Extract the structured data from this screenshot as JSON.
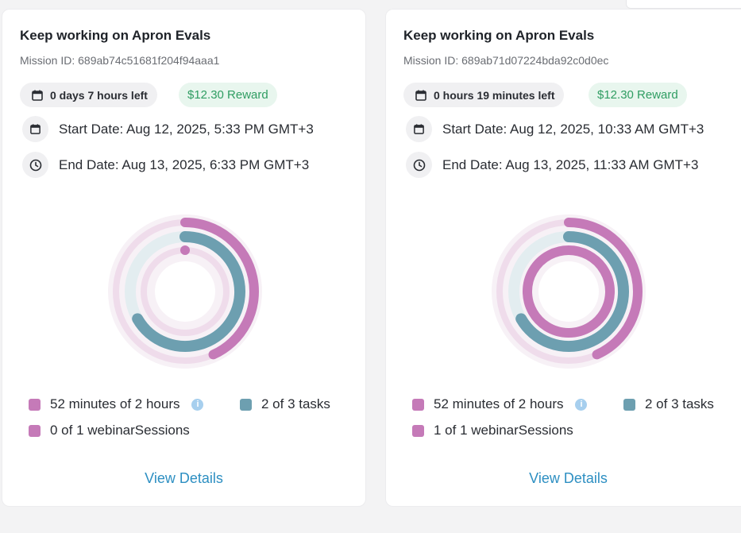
{
  "colors": {
    "pink": "#c57ab8",
    "teal": "#6d9fb0",
    "green": "#2f9d62",
    "link": "#2d8fc2"
  },
  "cards": [
    {
      "title": "Keep working on Apron Evals",
      "mission_id": "Mission ID: 689ab74c51681f204f94aaa1",
      "time_left": "0 days 7 hours left",
      "reward": "$12.30 Reward",
      "start_date": "Start Date: Aug 12, 2025, 5:33 PM GMT+3",
      "end_date": "End Date: Aug 13, 2025, 6:33 PM GMT+3",
      "legend": {
        "minutes": "52 minutes of 2 hours",
        "tasks": "2 of 3 tasks",
        "webinar": "0 of 1 webinarSessions"
      },
      "progress": {
        "minutes": 0.433,
        "tasks": 0.667,
        "webinar": 0.0
      },
      "view_details": "View Details"
    },
    {
      "title": "Keep working on Apron Evals",
      "mission_id": "Mission ID: 689ab71d07224bda92c0d0ec",
      "time_left": "0 hours 19 minutes left",
      "reward": "$12.30 Reward",
      "start_date": "Start Date: Aug 12, 2025, 10:33 AM GMT+3",
      "end_date": "End Date: Aug 13, 2025, 11:33 AM GMT+3",
      "legend": {
        "minutes": "52 minutes of 2 hours",
        "tasks": "2 of 3 tasks",
        "webinar": "1 of 1 webinarSessions"
      },
      "progress": {
        "minutes": 0.433,
        "tasks": 0.667,
        "webinar": 1.0
      },
      "view_details": "View Details"
    }
  ]
}
